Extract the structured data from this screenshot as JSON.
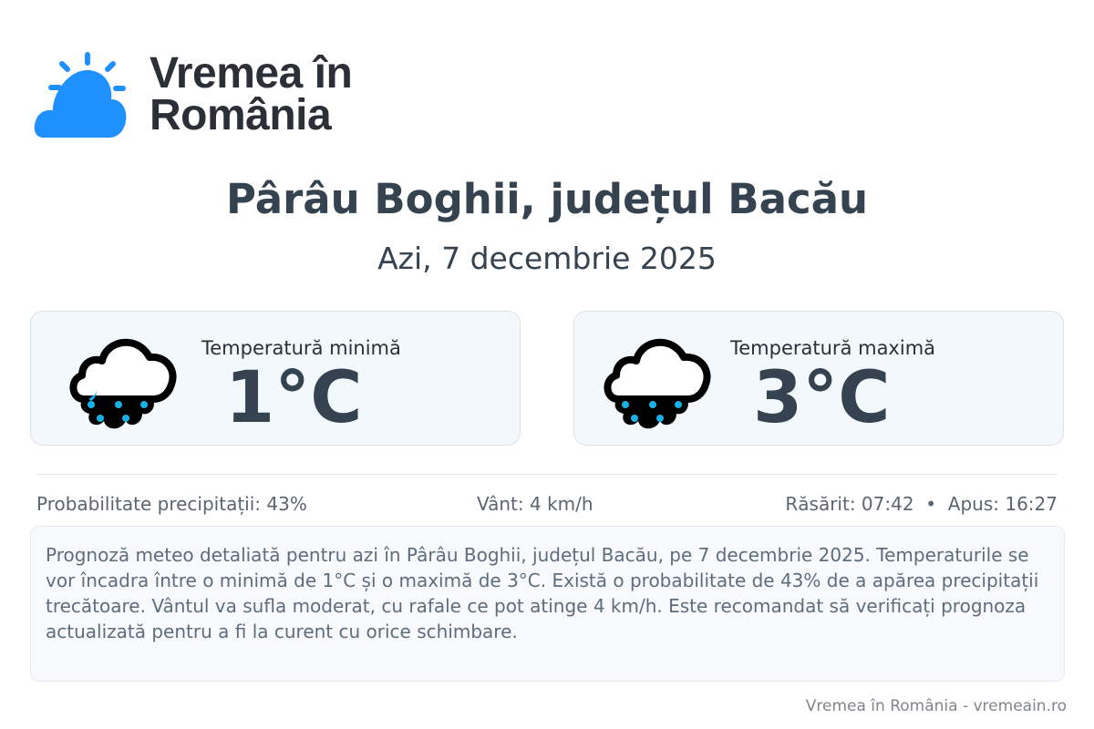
{
  "brand": {
    "line1": "Vremea în",
    "line2": "România",
    "accent": "#1e90ff"
  },
  "header": {
    "title": "Pârâu Boghii, județul Bacău",
    "date": "Azi, 7 decembrie 2025"
  },
  "cards": [
    {
      "label": "Temperatură minimă",
      "value": "1°C",
      "icon": "rain-cloud-icon"
    },
    {
      "label": "Temperatură maximă",
      "value": "3°C",
      "icon": "rain-cloud-icon"
    }
  ],
  "info": {
    "precipitation": "Probabilitate precipitații: 43%",
    "wind": "Vânt: 4 km/h",
    "sun": "Răsărit: 07:42  •  Apus: 16:27"
  },
  "description": "Prognoză meteo detaliată pentru azi în Pârâu Boghii, județul Bacău, pe 7 decembrie 2025. Temperaturile se vor încadra între o minimă de 1°C și o maximă de 3°C. Există o probabilitate de 43% de a apărea precipitații trecătoare. Vântul va sufla moderat, cu rafale ce pot atinge 4 km/h. Este recomandat să verificați prognoza actualizată pentru a fi la curent cu orice schimbare.",
  "footer": "Vremea în România - vremeain.ro"
}
